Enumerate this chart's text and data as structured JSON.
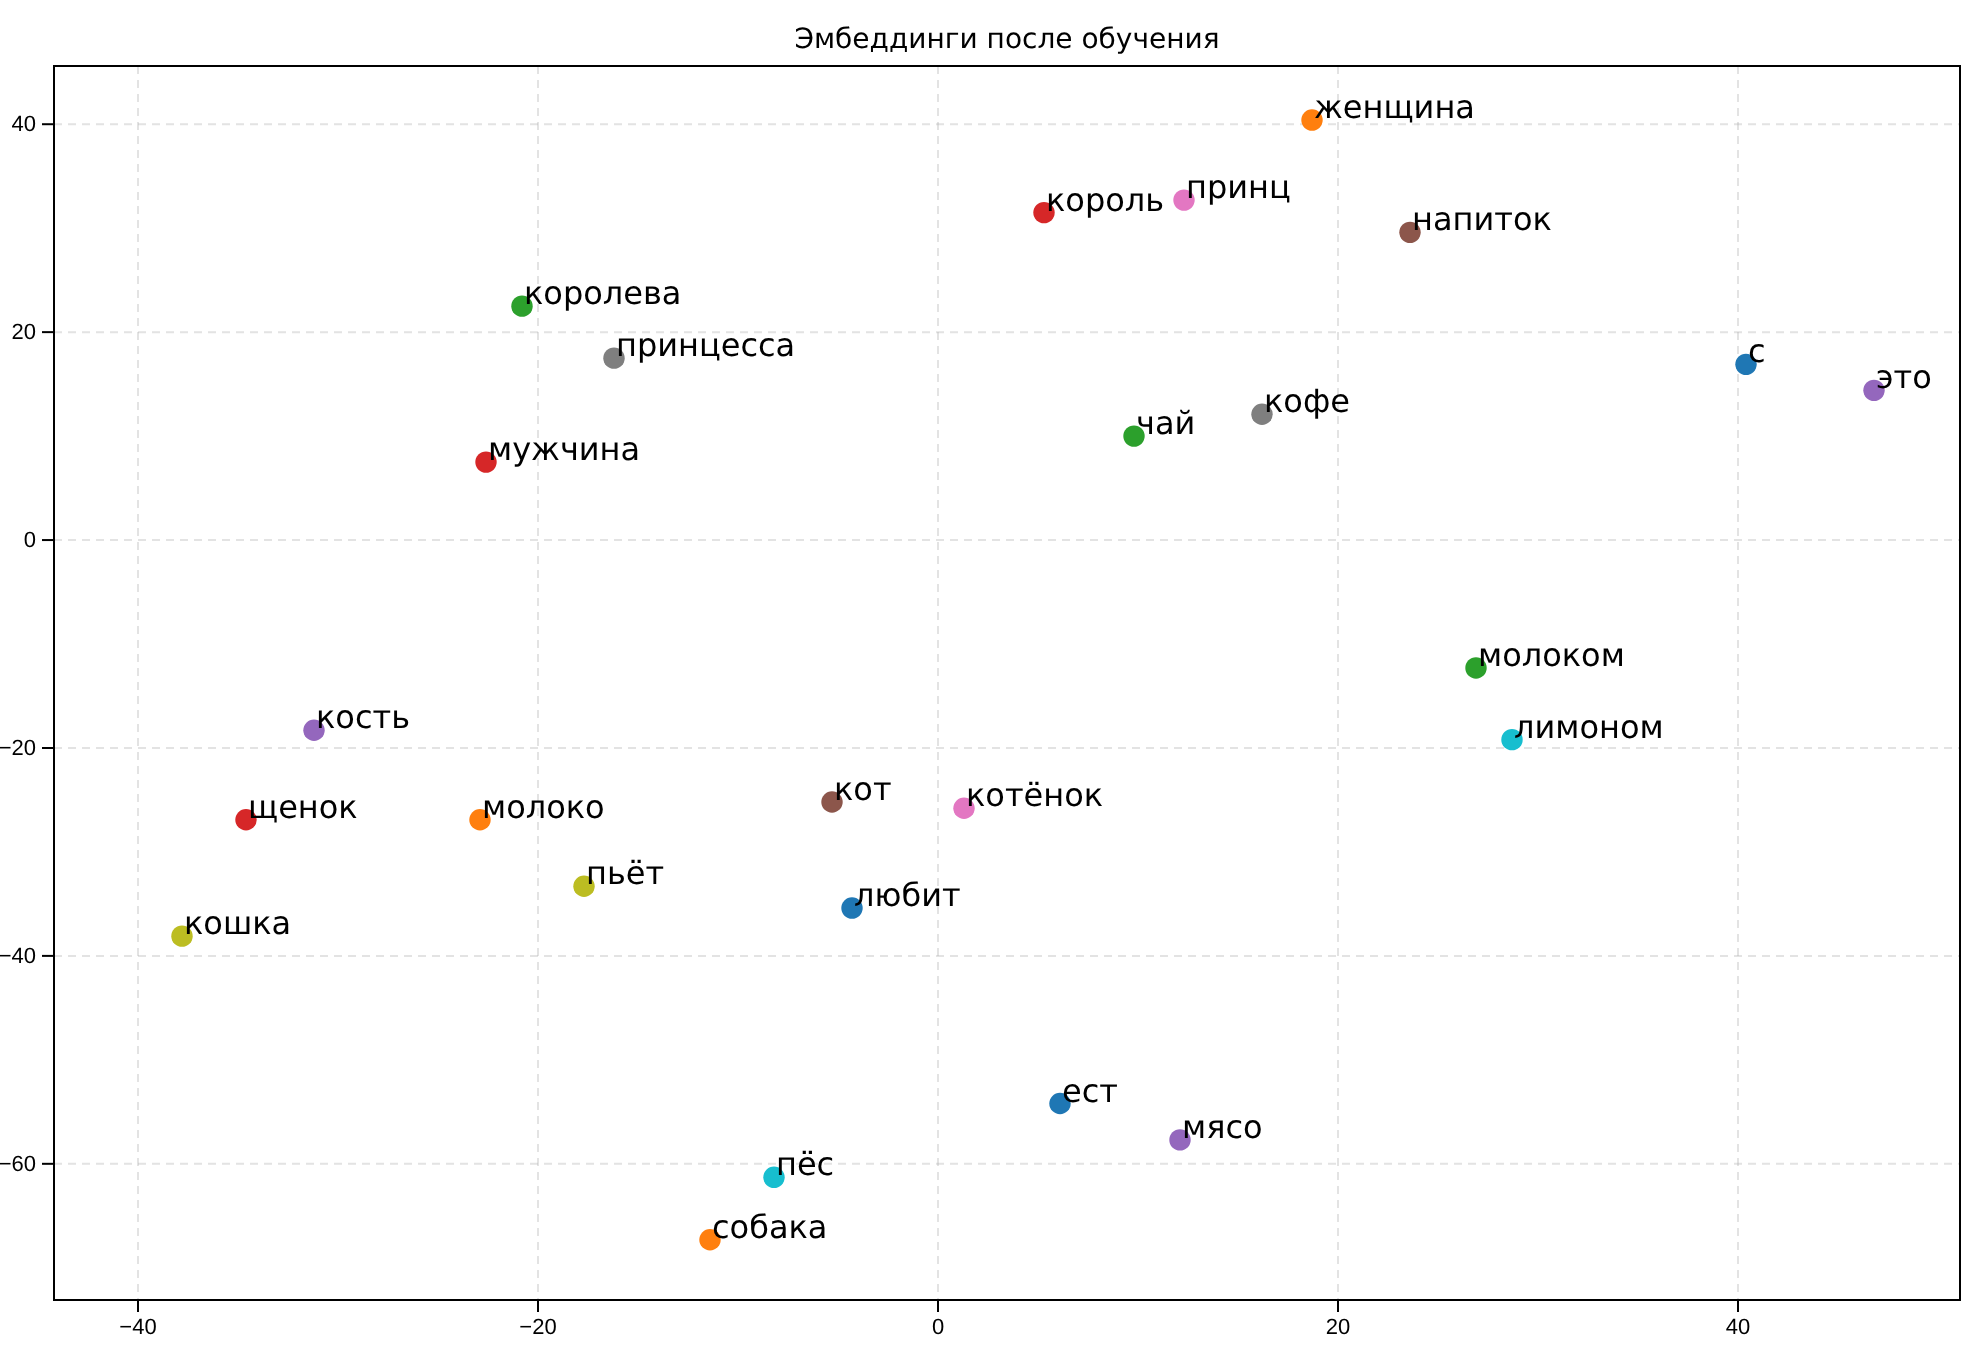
{
  "chart_data": {
    "type": "scatter",
    "title": "Эмбеддинги после обучения",
    "xlim": [
      -44.2,
      51.1
    ],
    "ylim": [
      -73.1,
      45.6
    ],
    "xticks": [
      -40,
      -20,
      0,
      20,
      40
    ],
    "yticks": [
      -60,
      -40,
      -20,
      0,
      20,
      40
    ],
    "grid": true,
    "marker": "circle",
    "series": [
      {
        "name": "женщина",
        "color": "#ff7f0e",
        "x": [
          18.7
        ],
        "values": [
          40.4
        ]
      },
      {
        "name": "король",
        "color": "#d62728",
        "x": [
          5.3
        ],
        "values": [
          31.5
        ]
      },
      {
        "name": "принц",
        "color": "#e377c2",
        "x": [
          12.3
        ],
        "values": [
          32.7
        ]
      },
      {
        "name": "напиток",
        "color": "#8c564b",
        "x": [
          23.6
        ],
        "values": [
          29.6
        ]
      },
      {
        "name": "королева",
        "color": "#2ca02c",
        "x": [
          -20.8
        ],
        "values": [
          22.5
        ]
      },
      {
        "name": "принцесса",
        "color": "#7f7f7f",
        "x": [
          -16.2
        ],
        "values": [
          17.5
        ]
      },
      {
        "name": "с",
        "color": "#1f77b4",
        "x": [
          40.4
        ],
        "values": [
          16.9
        ]
      },
      {
        "name": "это",
        "color": "#9467bd",
        "x": [
          46.8
        ],
        "values": [
          14.4
        ]
      },
      {
        "name": "чай",
        "color": "#2ca02c",
        "x": [
          9.8
        ],
        "values": [
          10.0
        ]
      },
      {
        "name": "кофе",
        "color": "#7f7f7f",
        "x": [
          16.2
        ],
        "values": [
          12.1
        ]
      },
      {
        "name": "мужчина",
        "color": "#d62728",
        "x": [
          -22.6
        ],
        "values": [
          7.5
        ]
      },
      {
        "name": "молоком",
        "color": "#2ca02c",
        "x": [
          26.9
        ],
        "values": [
          -12.3
        ]
      },
      {
        "name": "лимоном",
        "color": "#17becf",
        "x": [
          28.7
        ],
        "values": [
          -19.2
        ]
      },
      {
        "name": "кость",
        "color": "#9467bd",
        "x": [
          -31.2
        ],
        "values": [
          -18.3
        ]
      },
      {
        "name": "щенок",
        "color": "#d62728",
        "x": [
          -34.6
        ],
        "values": [
          -26.9
        ]
      },
      {
        "name": "молоко",
        "color": "#ff7f0e",
        "x": [
          -22.9
        ],
        "values": [
          -26.9
        ]
      },
      {
        "name": "кот",
        "color": "#8c564b",
        "x": [
          -5.3
        ],
        "values": [
          -25.2
        ]
      },
      {
        "name": "котёнок",
        "color": "#e377c2",
        "x": [
          1.3
        ],
        "values": [
          -25.8
        ]
      },
      {
        "name": "пьёт",
        "color": "#bcbd22",
        "x": [
          -17.7
        ],
        "values": [
          -33.3
        ]
      },
      {
        "name": "любит",
        "color": "#1f77b4",
        "x": [
          -4.3
        ],
        "values": [
          -35.4
        ]
      },
      {
        "name": "кошка",
        "color": "#bcbd22",
        "x": [
          -37.8
        ],
        "values": [
          -38.1
        ]
      },
      {
        "name": "ест",
        "color": "#1f77b4",
        "x": [
          6.1
        ],
        "values": [
          -54.2
        ]
      },
      {
        "name": "мясо",
        "color": "#9467bd",
        "x": [
          12.1
        ],
        "values": [
          -57.7
        ]
      },
      {
        "name": "пёс",
        "color": "#17becf",
        "x": [
          -8.2
        ],
        "values": [
          -61.3
        ]
      },
      {
        "name": "собака",
        "color": "#ff7f0e",
        "x": [
          -11.4
        ],
        "values": [
          -67.3
        ]
      }
    ]
  }
}
